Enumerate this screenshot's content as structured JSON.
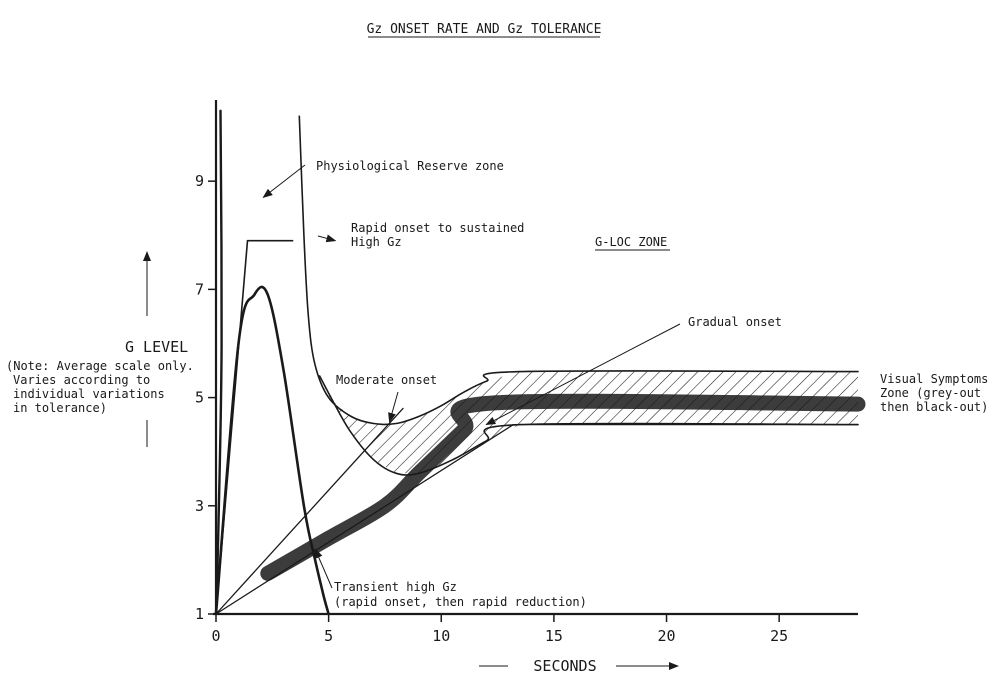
{
  "chart_data": {
    "type": "line",
    "title": "Gz ONSET RATE AND Gz TOLERANCE",
    "xlabel": "SECONDS",
    "ylabel": "G LEVEL",
    "ylabel_note": [
      "(Note: Average scale only.",
      "Varies according to",
      "individual variations",
      "in tolerance)"
    ],
    "xlim": [
      0,
      28.5
    ],
    "ylim": [
      1,
      10.5
    ],
    "x_ticks": [
      0,
      5,
      10,
      15,
      20,
      25
    ],
    "y_ticks": [
      1,
      3,
      5,
      7,
      9
    ],
    "grid": false,
    "series": [
      {
        "name": "Rapid onset to sustained High Gz",
        "points": [
          [
            0,
            1
          ],
          [
            1.4,
            7.9
          ],
          [
            3.4,
            7.9
          ]
        ]
      },
      {
        "name": "Transient high Gz",
        "points": [
          [
            0,
            1
          ],
          [
            1.0,
            6.0
          ],
          [
            1.7,
            6.9
          ],
          [
            2.3,
            6.9
          ],
          [
            3.0,
            5.5
          ],
          [
            3.9,
            3.0
          ],
          [
            4.4,
            2.0
          ],
          [
            4.8,
            1.3
          ],
          [
            5.0,
            1.0
          ]
        ]
      },
      {
        "name": "Moderate onset",
        "points": [
          [
            0,
            1
          ],
          [
            8.3,
            4.8
          ]
        ]
      },
      {
        "name": "Gradual onset",
        "points": [
          [
            0,
            1
          ],
          [
            13.2,
            4.5
          ],
          [
            28.5,
            4.5
          ]
        ]
      },
      {
        "name": "Physiological Reserve zone boundary",
        "points": [
          [
            0.2,
            10.3
          ],
          [
            0.25,
            6.0
          ],
          [
            0.1,
            2.5
          ],
          [
            0,
            1
          ]
        ]
      },
      {
        "name": "G-LOC boundary",
        "points": [
          [
            3.7,
            10.2
          ],
          [
            3.9,
            8.0
          ],
          [
            4.1,
            6.5
          ],
          [
            4.4,
            5.6
          ],
          [
            5.0,
            5.0
          ],
          [
            6.0,
            4.65
          ],
          [
            7.0,
            4.52
          ],
          [
            8.0,
            4.52
          ],
          [
            9.0,
            4.65
          ],
          [
            10.0,
            4.85
          ],
          [
            11.0,
            5.1
          ],
          [
            12.0,
            5.3
          ],
          [
            13.5,
            5.48
          ],
          [
            28.5,
            5.48
          ]
        ]
      },
      {
        "name": "Visual symptoms lower boundary",
        "points": [
          [
            4.6,
            5.4
          ],
          [
            5.3,
            4.85
          ],
          [
            6.0,
            4.35
          ],
          [
            7.0,
            3.85
          ],
          [
            8.0,
            3.6
          ],
          [
            9.0,
            3.6
          ],
          [
            10.5,
            3.85
          ],
          [
            12.0,
            4.2
          ],
          [
            13.5,
            4.5
          ],
          [
            28.5,
            4.5
          ]
        ]
      },
      {
        "name": "Highlighted tolerance trace",
        "points": [
          [
            2.3,
            1.75
          ],
          [
            5.0,
            2.4
          ],
          [
            7.5,
            3.0
          ],
          [
            9.0,
            3.6
          ],
          [
            11.0,
            4.4
          ],
          [
            12.3,
            4.9
          ],
          [
            28.5,
            4.88
          ]
        ]
      }
    ],
    "zones": [
      {
        "name": "Visual Symptoms Zone",
        "between": [
          "G-LOC boundary",
          "Visual symptoms lower boundary"
        ],
        "fill": "hatched"
      }
    ],
    "annotations": [
      {
        "text": "Physiological Reserve zone",
        "arrow_to": [
          2.1,
          8.7
        ]
      },
      {
        "text": "Rapid onset to sustained",
        "text2": "High Gz",
        "arrow_to": [
          5.3,
          7.9
        ]
      },
      {
        "text": "G-LOC ZONE",
        "underline": true
      },
      {
        "text": "Gradual onset",
        "arrow_to": [
          12.0,
          4.5
        ]
      },
      {
        "text": "Moderate onset",
        "arrow_to": [
          7.7,
          4.55
        ]
      },
      {
        "text": "Visual Symptoms",
        "text2": "Zone (grey-out",
        "text3": "then black-out)"
      },
      {
        "text": "Transient high Gz",
        "text2": "(rapid onset, then rapid reduction)",
        "arrow_to": [
          4.4,
          2.2
        ]
      }
    ],
    "colors": {
      "ink": "#1a1a1a",
      "highlight": "#4a96ec"
    }
  }
}
